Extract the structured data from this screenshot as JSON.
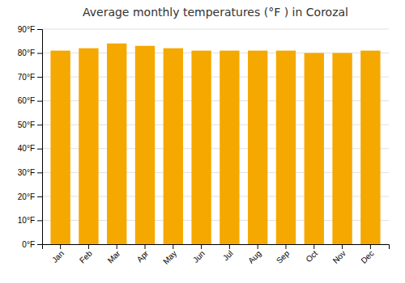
{
  "chart_data": {
    "type": "bar",
    "title": "Average monthly temperatures (°F ) in Corozal",
    "categories": [
      "Jan",
      "Feb",
      "Mar",
      "Apr",
      "May",
      "Jun",
      "Jul",
      "Aug",
      "Sep",
      "Oct",
      "Nov",
      "Dec"
    ],
    "values": [
      81.0,
      82.0,
      84.0,
      83.0,
      82.0,
      81.0,
      81.0,
      81.0,
      81.0,
      80.0,
      80.0,
      81.0
    ],
    "color": "#F5A800",
    "ylim": [
      0,
      90
    ],
    "yticks": [
      {
        "value": 0,
        "label": "0°F"
      },
      {
        "value": 10,
        "label": "10°F"
      },
      {
        "value": 20,
        "label": "20°F"
      },
      {
        "value": 30,
        "label": "30°F"
      },
      {
        "value": 40,
        "label": "40°F"
      },
      {
        "value": 50,
        "label": "50°F"
      },
      {
        "value": 60,
        "label": "60°F"
      },
      {
        "value": 70,
        "label": "70°F"
      },
      {
        "value": 80,
        "label": "80°F"
      },
      {
        "value": 90,
        "label": "90°F"
      }
    ],
    "grid": true
  }
}
